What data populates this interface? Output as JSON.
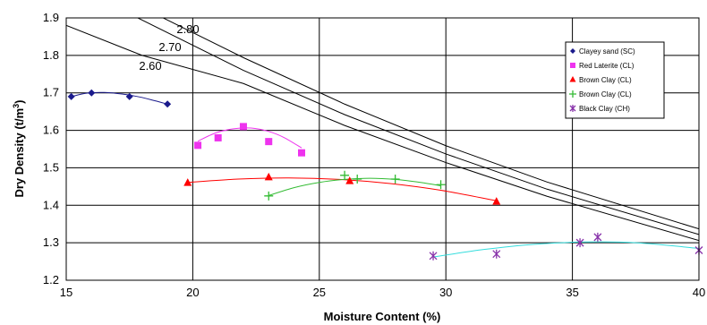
{
  "chart_data": {
    "type": "scatter",
    "title": "",
    "xlabel": "Moisture Content (%)",
    "ylabel": "Dry Density (t/m",
    "ylabel_sup": "3",
    "ylabel_end": ")",
    "xlim": [
      15,
      40
    ],
    "ylim": [
      1.2,
      1.9
    ],
    "xticks": [
      "15",
      "20",
      "25",
      "30",
      "35",
      "40"
    ],
    "yticks": [
      "1.2",
      "1.3",
      "1.4",
      "1.5",
      "1.6",
      "1.7",
      "1.8",
      "1.9"
    ],
    "xtick_values": [
      15,
      20,
      25,
      30,
      35,
      40
    ],
    "ytick_values": [
      1.2,
      1.3,
      1.4,
      1.5,
      1.6,
      1.7,
      1.8,
      1.9
    ],
    "grid": true,
    "legend_position": "right",
    "series": [
      {
        "name": "Clayey sand (SC)",
        "marker": "diamond",
        "color": "#1a1a8c",
        "x": [
          15.2,
          16.0,
          17.5,
          19.0
        ],
        "y": [
          1.69,
          1.7,
          1.69,
          1.67
        ],
        "fit_x": [
          15.2,
          15.8,
          16.5,
          17.2,
          17.9,
          18.5,
          19.0
        ],
        "fit_y": [
          1.69,
          1.699,
          1.701,
          1.697,
          1.689,
          1.679,
          1.67
        ]
      },
      {
        "name": "Red Laterite (CL)",
        "marker": "square",
        "color": "#ee33ee",
        "x": [
          20.2,
          21.0,
          22.0,
          23.0,
          24.3
        ],
        "y": [
          1.56,
          1.58,
          1.61,
          1.57,
          1.54
        ],
        "fit_x": [
          20.2,
          20.9,
          21.6,
          22.3,
          23.0,
          23.6,
          24.3
        ],
        "fit_y": [
          1.571,
          1.593,
          1.604,
          1.606,
          1.597,
          1.581,
          1.553
        ]
      },
      {
        "name": "Brown Clay (CL)",
        "marker": "triangle",
        "color": "#ff0000",
        "x": [
          19.8,
          23.0,
          26.2,
          32.0
        ],
        "y": [
          1.46,
          1.475,
          1.465,
          1.41
        ],
        "fit_x": [
          19.8,
          21.8,
          23.8,
          25.8,
          27.8,
          29.8,
          32.0
        ],
        "fit_y": [
          1.461,
          1.47,
          1.473,
          1.469,
          1.458,
          1.44,
          1.412
        ]
      },
      {
        "name": "Brown Clay (CL)",
        "marker": "plus",
        "color": "#33bb33",
        "x": [
          23.0,
          26.0,
          26.5,
          28.0,
          29.8
        ],
        "y": [
          1.425,
          1.48,
          1.47,
          1.47,
          1.455
        ],
        "fit_x": [
          23.0,
          24.0,
          25.0,
          26.0,
          27.0,
          28.0,
          29.0,
          29.8
        ],
        "fit_y": [
          1.426,
          1.447,
          1.461,
          1.469,
          1.472,
          1.469,
          1.461,
          1.452
        ]
      },
      {
        "name": "Black Clay (CH)",
        "marker": "star",
        "color": "#8833aa",
        "line_color": "#33dddd",
        "x": [
          29.5,
          32.0,
          35.3,
          36.0,
          40.0
        ],
        "y": [
          1.265,
          1.27,
          1.3,
          1.315,
          1.28
        ],
        "fit_x": [
          29.5,
          31.5,
          33.5,
          35.5,
          37.5,
          40.0
        ],
        "fit_y": [
          1.262,
          1.282,
          1.296,
          1.302,
          1.3,
          1.285
        ]
      }
    ],
    "saturation_lines": [
      {
        "label": "2.80",
        "x": [
          18.5,
          22,
          26,
          30,
          34,
          40
        ],
        "y": [
          1.911,
          1.794,
          1.67,
          1.559,
          1.462,
          1.337
        ]
      },
      {
        "label": "2.70",
        "x": [
          17.5,
          22,
          26,
          30,
          34,
          40
        ],
        "y": [
          1.911,
          1.76,
          1.642,
          1.537,
          1.443,
          1.322
        ]
      },
      {
        "label": "2.60",
        "x": [
          15,
          18,
          22,
          26,
          30,
          34,
          40
        ],
        "y": [
          1.88,
          1.8,
          1.725,
          1.613,
          1.514,
          1.424,
          1.306
        ]
      }
    ]
  }
}
